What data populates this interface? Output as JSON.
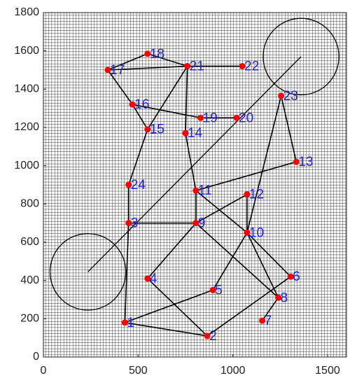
{
  "chart_data": {
    "type": "network",
    "xlim": [
      0,
      1600
    ],
    "ylim": [
      0,
      1800
    ],
    "xticks": [
      0,
      500,
      1000,
      1500
    ],
    "yticks": [
      0,
      200,
      400,
      600,
      800,
      1000,
      1200,
      1400,
      1600,
      1800
    ],
    "grid": true,
    "node_color": "#ff0000",
    "label_color": "#1f1fe6",
    "edge_color": "#000000",
    "labels": [
      "1",
      "2",
      "3",
      "4",
      "5",
      "6",
      "7",
      "8",
      "9",
      "10",
      "11",
      "12",
      "13",
      "14",
      "15",
      "16",
      "17",
      "18",
      "19",
      "20",
      "21",
      "22",
      "23",
      "24"
    ],
    "x": [
      430,
      865,
      450,
      550,
      895,
      1305,
      1155,
      1240,
      805,
      1075,
      805,
      1075,
      1335,
      750,
      550,
      470,
      340,
      550,
      830,
      1020,
      760,
      1050,
      1255,
      450
    ],
    "y": [
      180,
      110,
      700,
      410,
      350,
      420,
      190,
      310,
      700,
      650,
      870,
      850,
      1020,
      1170,
      1190,
      1320,
      1500,
      1585,
      1250,
      1250,
      1520,
      1520,
      1365,
      900
    ],
    "edges": [
      [
        17,
        18
      ],
      [
        18,
        21
      ],
      [
        17,
        21
      ],
      [
        21,
        22
      ],
      [
        17,
        16
      ],
      [
        16,
        15
      ],
      [
        16,
        19
      ],
      [
        19,
        20
      ],
      [
        21,
        15
      ],
      [
        21,
        14
      ],
      [
        15,
        24
      ],
      [
        24,
        3
      ],
      [
        14,
        11
      ],
      [
        11,
        9
      ],
      [
        11,
        13
      ],
      [
        11,
        10
      ],
      [
        9,
        12
      ],
      [
        3,
        9
      ],
      [
        9,
        4
      ],
      [
        9,
        8
      ],
      [
        10,
        8
      ],
      [
        10,
        6
      ],
      [
        10,
        5
      ],
      [
        10,
        23
      ],
      [
        23,
        13
      ],
      [
        12,
        10
      ],
      [
        3,
        1
      ],
      [
        1,
        5
      ],
      [
        1,
        2
      ],
      [
        4,
        2
      ],
      [
        2,
        6
      ],
      [
        8,
        7
      ]
    ],
    "circles": [
      {
        "x": 235,
        "y": 445,
        "r": 200
      },
      {
        "x": 1360,
        "y": 1570,
        "r": 200
      }
    ],
    "segment": {
      "x": [
        235,
        1360
      ],
      "y": [
        445,
        1570
      ]
    }
  }
}
